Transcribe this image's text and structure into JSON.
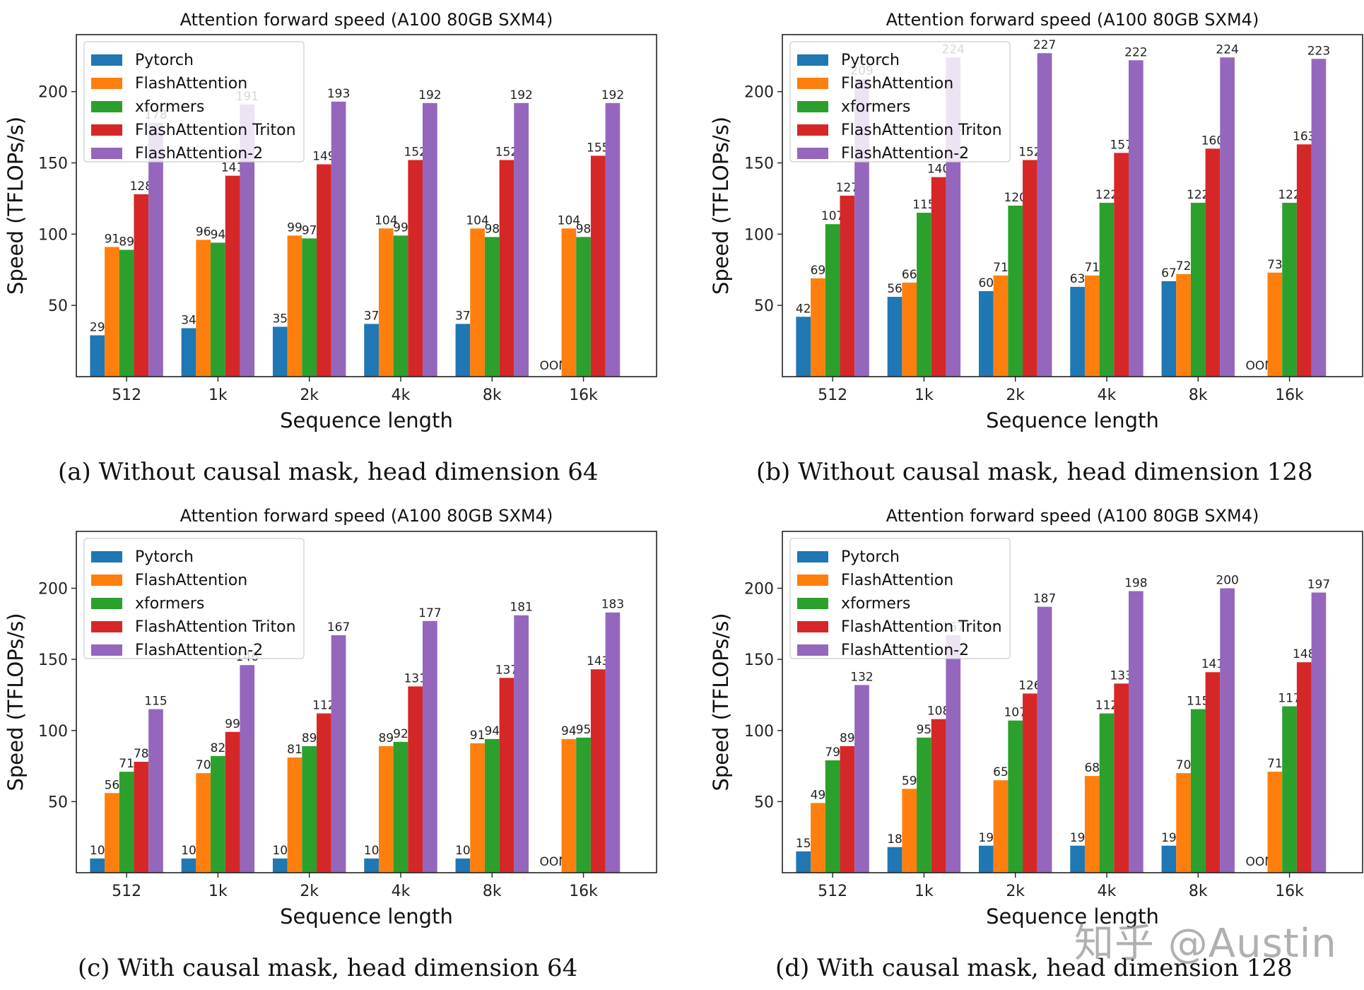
{
  "watermark": "知乎 @Austin",
  "captions": [
    "(a) Without causal mask, head dimension 64",
    "(b) Without causal mask, head dimension 128",
    "(c) With causal mask, head dimension 64",
    "(d) With causal mask, head dimension 128"
  ],
  "colors": {
    "Pytorch": "#1f77b4",
    "FlashAttention": "#ff7f0e",
    "xformers": "#2ca02c",
    "FlashAttention Triton": "#d62728",
    "FlashAttention-2": "#9467bd"
  },
  "chart_data": [
    {
      "type": "bar",
      "title": "Attention forward speed (A100 80GB SXM4)",
      "xlabel": "Sequence length",
      "ylabel": "Speed (TFLOPs/s)",
      "yticks": [
        50,
        100,
        150,
        200
      ],
      "ylim": [
        0,
        240
      ],
      "legend": "top-left",
      "categories": [
        "512",
        "1k",
        "2k",
        "4k",
        "8k",
        "16k"
      ],
      "series": [
        {
          "name": "Pytorch",
          "values": [
            29,
            34,
            35,
            37,
            37,
            null
          ],
          "labels": [
            "29",
            "34",
            "35",
            "37",
            "37",
            "OOM"
          ]
        },
        {
          "name": "FlashAttention",
          "values": [
            91,
            96,
            99,
            104,
            104,
            104
          ]
        },
        {
          "name": "xformers",
          "values": [
            89,
            94,
            97,
            99,
            98,
            98
          ]
        },
        {
          "name": "FlashAttention Triton",
          "values": [
            128,
            141,
            149,
            152,
            152,
            155
          ]
        },
        {
          "name": "FlashAttention-2",
          "values": [
            178,
            191,
            193,
            192,
            192,
            192
          ]
        }
      ]
    },
    {
      "type": "bar",
      "title": "Attention forward speed (A100 80GB SXM4)",
      "xlabel": "Sequence length",
      "ylabel": "Speed (TFLOPs/s)",
      "yticks": [
        50,
        100,
        150,
        200
      ],
      "ylim": [
        0,
        240
      ],
      "legend": "top-left",
      "categories": [
        "512",
        "1k",
        "2k",
        "4k",
        "8k",
        "16k"
      ],
      "series": [
        {
          "name": "Pytorch",
          "values": [
            42,
            56,
            60,
            63,
            67,
            null
          ],
          "labels": [
            "42",
            "56",
            "60",
            "63",
            "67",
            "OOM"
          ]
        },
        {
          "name": "FlashAttention",
          "values": [
            69,
            66,
            71,
            71,
            72,
            73
          ]
        },
        {
          "name": "xformers",
          "values": [
            107,
            115,
            120,
            122,
            122,
            122
          ]
        },
        {
          "name": "FlashAttention Triton",
          "values": [
            127,
            140,
            152,
            157,
            160,
            163
          ]
        },
        {
          "name": "FlashAttention-2",
          "values": [
            209,
            224,
            227,
            222,
            224,
            223
          ]
        }
      ]
    },
    {
      "type": "bar",
      "title": "Attention forward speed (A100 80GB SXM4)",
      "xlabel": "Sequence length",
      "ylabel": "Speed (TFLOPs/s)",
      "yticks": [
        50,
        100,
        150,
        200
      ],
      "ylim": [
        0,
        240
      ],
      "legend": "top-left",
      "categories": [
        "512",
        "1k",
        "2k",
        "4k",
        "8k",
        "16k"
      ],
      "series": [
        {
          "name": "Pytorch",
          "values": [
            10,
            10,
            10,
            10,
            10,
            null
          ],
          "labels": [
            "10",
            "10",
            "10",
            "10",
            "10",
            "OOM"
          ]
        },
        {
          "name": "FlashAttention",
          "values": [
            56,
            70,
            81,
            89,
            91,
            94
          ]
        },
        {
          "name": "xformers",
          "values": [
            71,
            82,
            89,
            92,
            94,
            95
          ]
        },
        {
          "name": "FlashAttention Triton",
          "values": [
            78,
            99,
            112,
            131,
            137,
            143
          ]
        },
        {
          "name": "FlashAttention-2",
          "values": [
            115,
            146,
            167,
            177,
            181,
            183
          ]
        }
      ]
    },
    {
      "type": "bar",
      "title": "Attention forward speed (A100 80GB SXM4)",
      "xlabel": "Sequence length",
      "ylabel": "Speed (TFLOPs/s)",
      "yticks": [
        50,
        100,
        150,
        200
      ],
      "ylim": [
        0,
        240
      ],
      "legend": "top-left",
      "categories": [
        "512",
        "1k",
        "2k",
        "4k",
        "8k",
        "16k"
      ],
      "series": [
        {
          "name": "Pytorch",
          "values": [
            15,
            18,
            19,
            19,
            19,
            null
          ],
          "labels": [
            "15",
            "18",
            "19",
            "19",
            "19",
            "OOM"
          ]
        },
        {
          "name": "FlashAttention",
          "values": [
            49,
            59,
            65,
            68,
            70,
            71
          ]
        },
        {
          "name": "xformers",
          "values": [
            79,
            95,
            107,
            112,
            115,
            117
          ]
        },
        {
          "name": "FlashAttention Triton",
          "values": [
            89,
            108,
            126,
            133,
            141,
            148
          ]
        },
        {
          "name": "FlashAttention-2",
          "values": [
            132,
            167,
            187,
            198,
            200,
            197
          ]
        }
      ]
    }
  ]
}
